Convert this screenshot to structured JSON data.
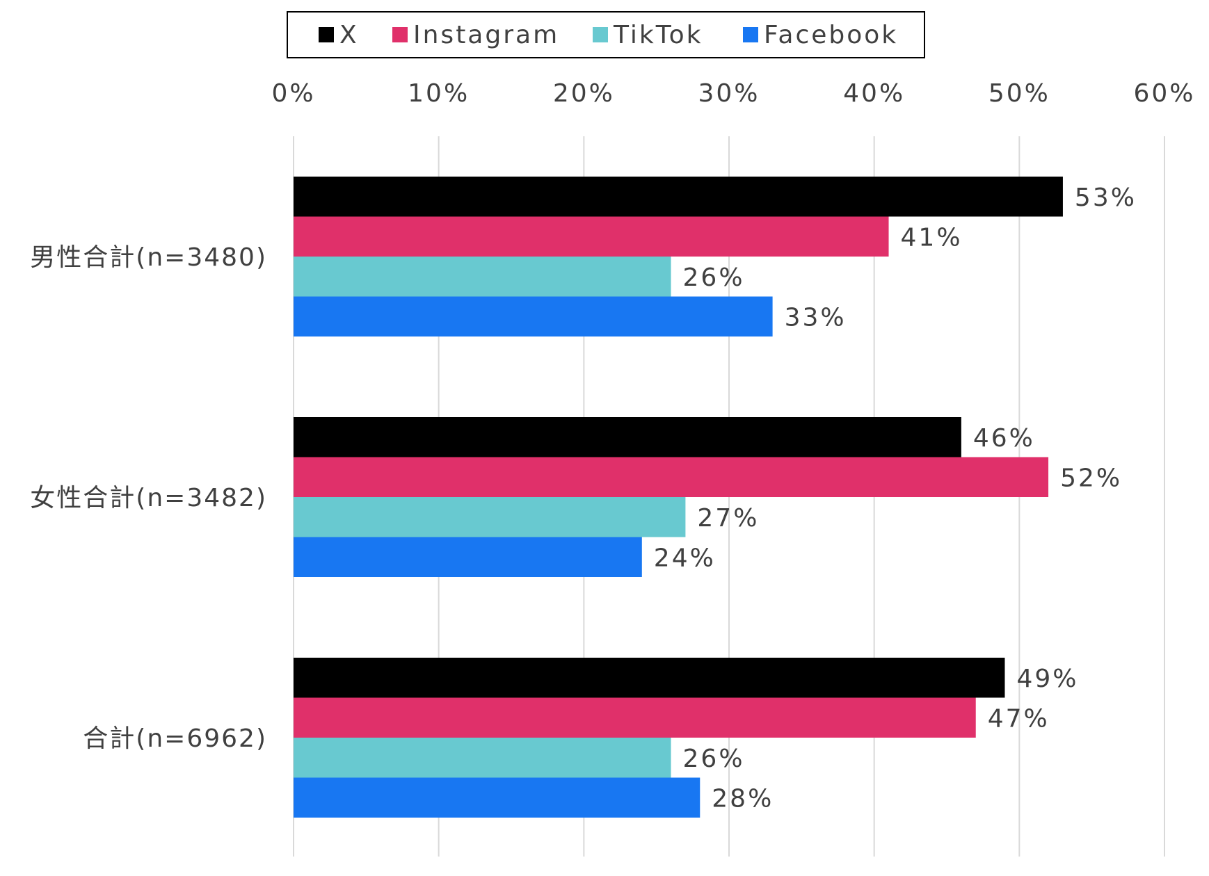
{
  "chart_data": {
    "type": "bar",
    "orientation": "horizontal",
    "categories": [
      "男性合計(n=3480)",
      "女性合計(n=3482)",
      "合計(n=6962)"
    ],
    "series": [
      {
        "name": "X",
        "color": "#000000",
        "values": [
          53,
          46,
          49
        ],
        "labels": [
          "53%",
          "46%",
          "49%"
        ]
      },
      {
        "name": "Instagram",
        "color": "#E0306A",
        "values": [
          41,
          52,
          47
        ],
        "labels": [
          "41%",
          "52%",
          "47%"
        ]
      },
      {
        "name": "TikTok",
        "color": "#68C9D0",
        "values": [
          26,
          27,
          26
        ],
        "labels": [
          "26%",
          "27%",
          "26%"
        ]
      },
      {
        "name": "Facebook",
        "color": "#1877F2",
        "values": [
          33,
          24,
          28
        ],
        "labels": [
          "33%",
          "24%",
          "28%"
        ]
      }
    ],
    "x_ticks": [
      "0%",
      "10%",
      "20%",
      "30%",
      "40%",
      "50%",
      "60%"
    ],
    "xlim": [
      0,
      60
    ],
    "axis_position": "top",
    "grid": true,
    "legend_position": "top"
  }
}
